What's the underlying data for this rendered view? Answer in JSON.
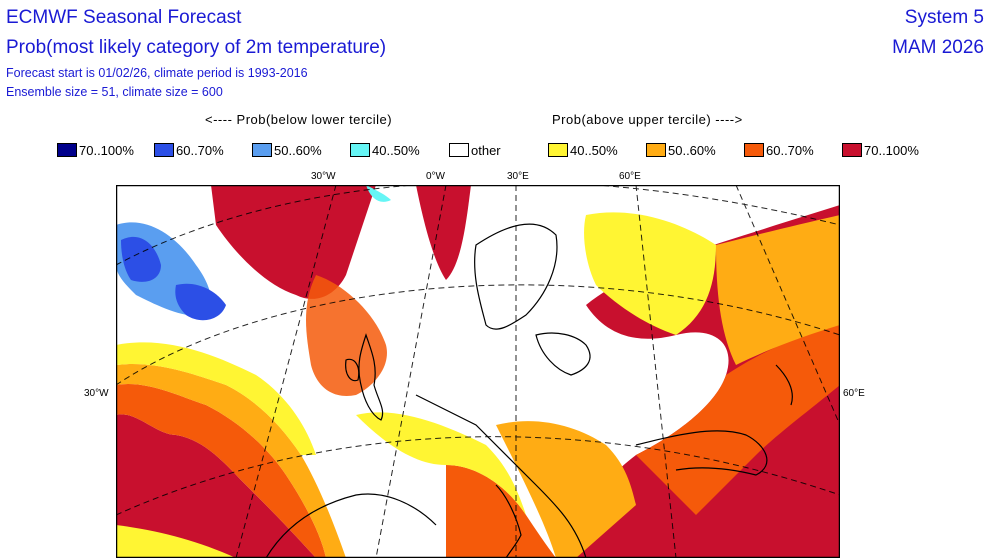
{
  "header": {
    "title": "ECMWF Seasonal Forecast",
    "subtitle": "Prob(most likely category of 2m temperature)",
    "forecast_info": "Forecast start is 01/02/26, climate period is 1993-2016",
    "ensemble_info": "Ensemble size = 51, climate size = 600",
    "system": "System 5",
    "season": "MAM 2026"
  },
  "legend": {
    "below_caption": "<---- Prob(below lower tercile)",
    "above_caption": "Prob(above upper tercile) ---->",
    "items": [
      {
        "label": "70..100%",
        "color": "#00008b"
      },
      {
        "label": "60..70%",
        "color": "#2c4fe6"
      },
      {
        "label": "50..60%",
        "color": "#5a9ef0"
      },
      {
        "label": "40..50%",
        "color": "#66f5f5"
      },
      {
        "label": "other",
        "color": "#ffffff"
      },
      {
        "label": "40..50%",
        "color": "#fff533"
      },
      {
        "label": "50..60%",
        "color": "#ffac14"
      },
      {
        "label": "60..70%",
        "color": "#f55a0a"
      },
      {
        "label": "70..100%",
        "color": "#c8102e"
      }
    ]
  },
  "axes": {
    "top_labels": [
      "30°W",
      "0°W",
      "30°E",
      "60°E"
    ],
    "left_label": "30°W",
    "right_label": "60°E"
  }
}
